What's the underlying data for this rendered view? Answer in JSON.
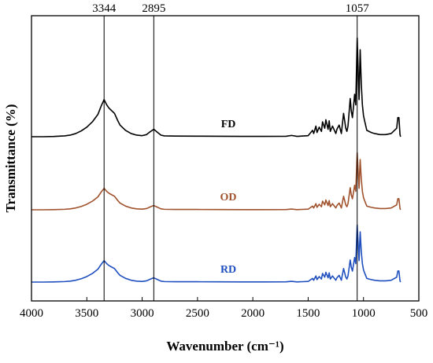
{
  "chart_data": {
    "type": "line",
    "xlabel": "Wavenumber (cm⁻¹)",
    "ylabel": "Transmittance (%)",
    "xlim": [
      4000,
      500
    ],
    "x_reversed": true,
    "x_ticks": [
      4000,
      3500,
      3000,
      2500,
      2000,
      1500,
      1000,
      500
    ],
    "y_ticks_shown": false,
    "grid": false,
    "legend": "none (inline labels)",
    "reference_lines": [
      {
        "x": 3344,
        "label": "3344"
      },
      {
        "x": 2895,
        "label": "2895"
      },
      {
        "x": 1057,
        "label": "1057"
      }
    ],
    "series": [
      {
        "name": "FD",
        "color": "#000000",
        "label_at": 2150
      },
      {
        "name": "OD",
        "color": "#a0522d",
        "label_at": 2150
      },
      {
        "name": "RD",
        "color": "#1f4fbf",
        "label_at": 2150
      }
    ],
    "spectrum_points": {
      "x": [
        4000,
        3900,
        3800,
        3700,
        3650,
        3600,
        3550,
        3500,
        3450,
        3400,
        3370,
        3344,
        3320,
        3300,
        3280,
        3250,
        3220,
        3200,
        3150,
        3100,
        3050,
        3000,
        2960,
        2930,
        2895,
        2860,
        2830,
        2800,
        2700,
        2500,
        2300,
        2100,
        1900,
        1700,
        1650,
        1600,
        1500,
        1460,
        1450,
        1430,
        1420,
        1400,
        1380,
        1370,
        1350,
        1340,
        1320,
        1310,
        1300,
        1280,
        1250,
        1240,
        1220,
        1200,
        1180,
        1160,
        1150,
        1140,
        1120,
        1110,
        1100,
        1080,
        1070,
        1057,
        1040,
        1030,
        1020,
        1010,
        1000,
        990,
        970,
        950,
        930,
        900,
        850,
        800,
        750,
        700,
        690,
        680,
        670,
        665
      ],
      "y": [
        0.0,
        0.0,
        0.002,
        0.008,
        0.015,
        0.03,
        0.055,
        0.09,
        0.14,
        0.21,
        0.29,
        0.35,
        0.3,
        0.27,
        0.25,
        0.22,
        0.15,
        0.11,
        0.06,
        0.03,
        0.015,
        0.01,
        0.02,
        0.045,
        0.07,
        0.04,
        0.015,
        0.008,
        0.006,
        0.005,
        0.004,
        0.003,
        0.003,
        0.004,
        0.012,
        0.003,
        0.01,
        0.06,
        0.03,
        0.1,
        0.04,
        0.09,
        0.05,
        0.14,
        0.08,
        0.16,
        0.07,
        0.15,
        0.05,
        0.1,
        0.03,
        0.07,
        0.11,
        0.03,
        0.22,
        0.08,
        0.05,
        0.1,
        0.36,
        0.24,
        0.18,
        0.4,
        0.3,
        0.93,
        0.35,
        0.82,
        0.5,
        0.3,
        0.2,
        0.15,
        0.06,
        0.05,
        0.04,
        0.03,
        0.02,
        0.02,
        0.03,
        0.08,
        0.18,
        0.18,
        0.02,
        0.0
      ]
    }
  }
}
